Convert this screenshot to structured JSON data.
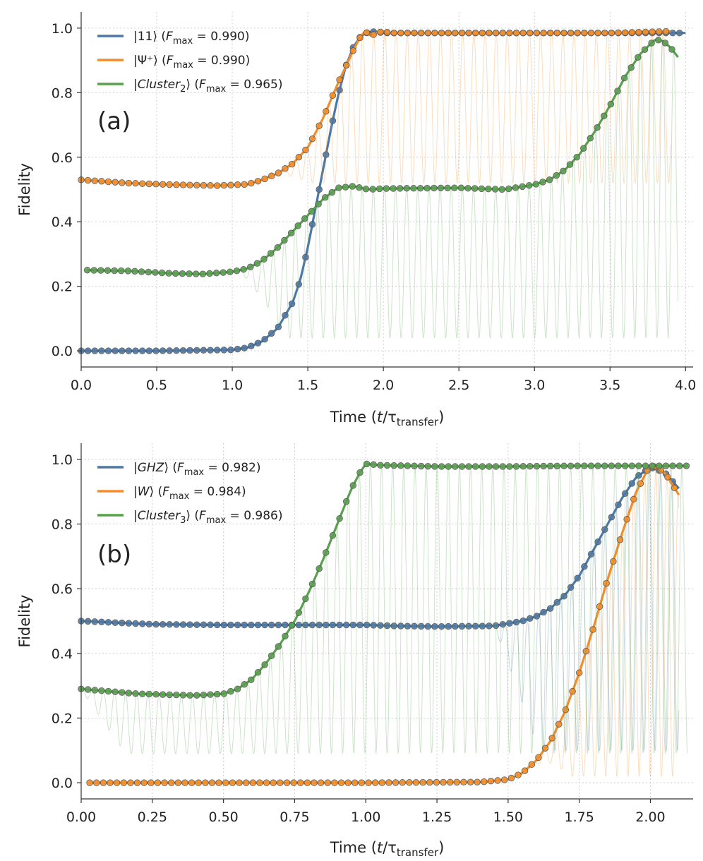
{
  "chart_data": [
    {
      "type": "line",
      "panel_label": "(a)",
      "xlabel": "Time (t/τ_transfer)",
      "ylabel": "Fidelity",
      "xlim": [
        0.0,
        4.05
      ],
      "ylim": [
        -0.05,
        1.05
      ],
      "xticks": [
        "0.0",
        "0.5",
        "1.0",
        "1.5",
        "2.0",
        "2.5",
        "3.0",
        "3.5",
        "4.0"
      ],
      "xtick_values": [
        0,
        0.5,
        1.0,
        1.5,
        2.0,
        2.5,
        3.0,
        3.5,
        4.0
      ],
      "yticks": [
        "0.0",
        "0.2",
        "0.4",
        "0.6",
        "0.8",
        "1.0"
      ],
      "ytick_values": [
        0,
        0.2,
        0.4,
        0.6,
        0.8,
        1.0
      ],
      "grid": true,
      "legend_position": "top-left",
      "series": [
        {
          "name": "|11⟩ (F_max = 0.990)",
          "legend": {
            "pre": "|11⟩ (",
            "var": "F",
            "sub": "max",
            "post": " = 0.990)"
          },
          "color": "#4e79a7",
          "x": [
            0.0,
            0.5,
            1.0,
            1.1,
            1.2,
            1.3,
            1.4,
            1.45,
            1.5,
            1.55,
            1.6,
            1.65,
            1.7,
            1.75,
            1.8,
            1.85,
            1.9,
            1.95,
            2.0,
            2.5,
            3.0,
            3.5,
            4.0
          ],
          "y": [
            0.0,
            0.0,
            0.003,
            0.01,
            0.03,
            0.07,
            0.15,
            0.22,
            0.32,
            0.44,
            0.56,
            0.68,
            0.79,
            0.88,
            0.94,
            0.975,
            0.988,
            0.989,
            0.985,
            0.985,
            0.985,
            0.985,
            0.985
          ],
          "markers_x": [
            0.0,
            1.95,
            4.0
          ],
          "osc": false
        },
        {
          "name": "|Ψ+⟩ (F_max = 0.990)",
          "legend": {
            "pre": "|Ψ⁺⟩ (",
            "var": "F",
            "sub": "max",
            "post": " = 0.990)"
          },
          "color": "#f28e2b",
          "x": [
            0.0,
            0.3,
            0.6,
            0.9,
            1.1,
            1.2,
            1.3,
            1.4,
            1.5,
            1.6,
            1.7,
            1.75,
            1.8,
            1.85,
            1.88,
            1.92,
            1.95,
            2.0,
            2.05,
            2.5,
            3.0,
            3.5,
            3.9
          ],
          "y": [
            0.53,
            0.52,
            0.515,
            0.512,
            0.516,
            0.53,
            0.55,
            0.58,
            0.63,
            0.72,
            0.83,
            0.88,
            0.93,
            0.975,
            0.99,
            0.975,
            0.985,
            0.99,
            0.985,
            0.985,
            0.985,
            0.985,
            0.99
          ],
          "markers_x": [
            0.0,
            1.95,
            3.92
          ],
          "osc": true,
          "osc_start": 1.2,
          "osc_lo": 0.5
        },
        {
          "name": "|Cluster2⟩ (F_max = 0.965)",
          "legend": {
            "pre": "|",
            "ital": "Cluster",
            "isub": "2",
            "mid": "⟩ (",
            "var": "F",
            "sub": "max",
            "post": " = 0.965)"
          },
          "color": "#59a14f",
          "x": [
            0.04,
            0.3,
            0.6,
            0.8,
            1.0,
            1.1,
            1.2,
            1.3,
            1.4,
            1.5,
            1.6,
            1.7,
            1.8,
            1.9,
            2.0,
            2.5,
            2.8,
            3.0,
            3.1,
            3.2,
            3.3,
            3.4,
            3.5,
            3.6,
            3.7,
            3.8,
            3.85,
            3.9,
            3.95
          ],
          "y": [
            0.25,
            0.248,
            0.24,
            0.238,
            0.245,
            0.255,
            0.28,
            0.32,
            0.37,
            0.42,
            0.47,
            0.505,
            0.51,
            0.5,
            0.503,
            0.505,
            0.5,
            0.515,
            0.53,
            0.56,
            0.61,
            0.68,
            0.76,
            0.85,
            0.92,
            0.965,
            0.96,
            0.94,
            0.91
          ],
          "markers_x": [
            0.04,
            1.05,
            3.95
          ],
          "osc": true,
          "osc_start": 1.05,
          "osc_lo": 0.0
        }
      ]
    },
    {
      "type": "line",
      "panel_label": "(b)",
      "xlabel": "Time (t/τ_transfer)",
      "ylabel": "Fidelity",
      "xlim": [
        0.0,
        2.15
      ],
      "ylim": [
        -0.05,
        1.05
      ],
      "xticks": [
        "0.00",
        "0.25",
        "0.50",
        "0.75",
        "1.00",
        "1.25",
        "1.50",
        "1.75",
        "2.00"
      ],
      "xtick_values": [
        0,
        0.25,
        0.5,
        0.75,
        1.0,
        1.25,
        1.5,
        1.75,
        2.0
      ],
      "yticks": [
        "0.0",
        "0.2",
        "0.4",
        "0.6",
        "0.8",
        "1.0"
      ],
      "ytick_values": [
        0,
        0.2,
        0.4,
        0.6,
        0.8,
        1.0
      ],
      "grid": true,
      "legend_position": "top-left",
      "series": [
        {
          "name": "|GHZ⟩ (F_max = 0.982)",
          "legend": {
            "pre": "|",
            "ital": "GHZ",
            "mid": "⟩ (",
            "var": "F",
            "sub": "max",
            "post": " = 0.982)"
          },
          "color": "#4e79a7",
          "x": [
            0.0,
            0.25,
            0.5,
            0.75,
            1.0,
            1.1,
            1.25,
            1.45,
            1.55,
            1.6,
            1.65,
            1.7,
            1.75,
            1.8,
            1.85,
            1.9,
            1.95,
            2.0,
            2.05,
            2.1
          ],
          "y": [
            0.5,
            0.49,
            0.488,
            0.488,
            0.488,
            0.485,
            0.483,
            0.485,
            0.5,
            0.515,
            0.54,
            0.58,
            0.64,
            0.72,
            0.8,
            0.88,
            0.945,
            0.975,
            0.96,
            0.91
          ],
          "markers_x": [
            0.0,
            2.1
          ],
          "osc": true,
          "osc_start": 1.45,
          "osc_lo": 0.1
        },
        {
          "name": "|W⟩ (F_max = 0.984)",
          "legend": {
            "pre": "|",
            "ital": "W",
            "mid": "⟩ (",
            "var": "F",
            "sub": "max",
            "post": " = 0.984)"
          },
          "color": "#f28e2b",
          "x": [
            0.03,
            0.5,
            1.0,
            1.4,
            1.5,
            1.55,
            1.6,
            1.65,
            1.7,
            1.75,
            1.8,
            1.85,
            1.9,
            1.95,
            2.0,
            2.05,
            2.1
          ],
          "y": [
            0.0,
            0.0,
            0.0,
            0.002,
            0.01,
            0.03,
            0.07,
            0.13,
            0.22,
            0.34,
            0.48,
            0.63,
            0.77,
            0.9,
            0.984,
            0.96,
            0.89
          ],
          "markers_x": [
            0.03,
            2.1
          ],
          "osc": true,
          "osc_start": 1.55,
          "osc_lo": 0.0
        },
        {
          "name": "|Cluster3⟩ (F_max = 0.986)",
          "legend": {
            "pre": "|",
            "ital": "Cluster",
            "isub": "3",
            "mid": "⟩ (",
            "var": "F",
            "sub": "max",
            "post": " = 0.986)"
          },
          "color": "#59a14f",
          "x": [
            0.0,
            0.2,
            0.4,
            0.5,
            0.55,
            0.6,
            0.65,
            0.7,
            0.75,
            0.8,
            0.85,
            0.9,
            0.95,
            0.98,
            1.0,
            1.05,
            1.25,
            1.5,
            1.75,
            2.0,
            2.13
          ],
          "y": [
            0.29,
            0.275,
            0.27,
            0.275,
            0.29,
            0.32,
            0.37,
            0.43,
            0.5,
            0.59,
            0.69,
            0.8,
            0.91,
            0.96,
            0.986,
            0.982,
            0.978,
            0.978,
            0.98,
            0.98,
            0.98
          ],
          "markers_x": [
            0.0,
            2.13
          ],
          "osc": true,
          "osc_start": 0.0,
          "osc_lo": 0.05
        }
      ]
    }
  ]
}
